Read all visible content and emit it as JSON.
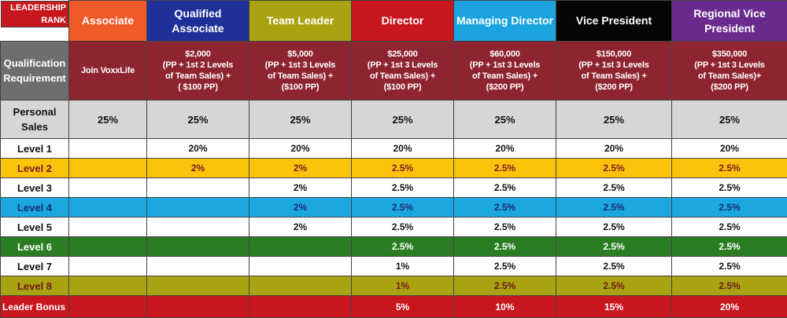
{
  "header": {
    "rank_label": "LEADERSHIP\nRANK",
    "ranks": [
      {
        "name": "Associate",
        "bg": "#f05a28",
        "fg": "#ffffff"
      },
      {
        "name": "Qualified\nAssociate",
        "bg": "#1f2f9a",
        "fg": "#ffffff"
      },
      {
        "name": "Team Leader",
        "bg": "#a9a312",
        "fg": "#ffffff"
      },
      {
        "name": "Director",
        "bg": "#c8161e",
        "fg": "#ffffff"
      },
      {
        "name": "Managing Director",
        "bg": "#1aa3df",
        "fg": "#ffffff"
      },
      {
        "name": "Vice President",
        "bg": "#050505",
        "fg": "#ffffff"
      },
      {
        "name": "Regional Vice President",
        "bg": "#6a2a8e",
        "fg": "#ffffff"
      }
    ]
  },
  "qualification": {
    "label": "Qualification\nRequirement",
    "values": [
      "Join VoxxLife",
      "$2,000\n(PP + 1st  2 Levels\nof Team Sales)  +\n( $100 PP)",
      "$5,000\n(PP + 1st  3 Levels\nof Team Sales) +\n($100 PP)",
      "$25,000\n(PP + 1st  3 Levels\nof Team Sales) +\n($100 PP)",
      "$60,000\n(PP + 1st  3 Levels\nof Team Sales) +\n($200 PP)",
      "$150,000\n(PP + 1st  3 Levels\nof Team Sales) +\n($200 PP)",
      "$350,000\n(PP + 1st  3 Levels\nof Team Sales)+\n($200 PP)"
    ]
  },
  "personal": {
    "label": "Personal\nSales",
    "values": [
      "25%",
      "25%",
      "25%",
      "25%",
      "25%",
      "25%",
      "25%"
    ]
  },
  "levels": [
    {
      "label": "Level 1",
      "bg": "#ffffff",
      "fg": "#111111",
      "values": [
        "",
        "20%",
        "20%",
        "20%",
        "20%",
        "20%",
        "20%"
      ]
    },
    {
      "label": "Level 2",
      "bg": "#fcc30d",
      "fg": "#7a1c1c",
      "values": [
        "",
        "2%",
        "2%",
        "2.5%",
        "2.5%",
        "2.5%",
        "2.5%"
      ]
    },
    {
      "label": "Level 3",
      "bg": "#ffffff",
      "fg": "#111111",
      "values": [
        "",
        "",
        "2%",
        "2.5%",
        "2.5%",
        "2.5%",
        "2.5%"
      ]
    },
    {
      "label": "Level 4",
      "bg": "#1ba8e0",
      "fg": "#1a2b73",
      "values": [
        "",
        "",
        "2%",
        "2.5%",
        "2.5%",
        "2.5%",
        "2.5%"
      ]
    },
    {
      "label": "Level 5",
      "bg": "#ffffff",
      "fg": "#111111",
      "values": [
        "",
        "",
        "2%",
        "2.5%",
        "2.5%",
        "2.5%",
        "2.5%"
      ]
    },
    {
      "label": "Level 6",
      "bg": "#2a7d22",
      "fg": "#ffffff",
      "values": [
        "",
        "",
        "",
        "2.5%",
        "2.5%",
        "2.5%",
        "2.5%"
      ]
    },
    {
      "label": "Level 7",
      "bg": "#ffffff",
      "fg": "#111111",
      "values": [
        "",
        "",
        "",
        "1%",
        "2.5%",
        "2.5%",
        "2.5%"
      ]
    },
    {
      "label": "Level 8",
      "bg": "#a9a312",
      "fg": "#6e1a1a",
      "values": [
        "",
        "",
        "",
        "1%",
        "2.5%",
        "2.5%",
        "2.5%"
      ]
    }
  ],
  "bonus": {
    "label": "Leader Bonus",
    "values": [
      "",
      "",
      "",
      "5%",
      "10%",
      "15%",
      "20%"
    ]
  },
  "colors": {
    "header_label_bg": "#c8161e",
    "qualification_bg": "#8e2430",
    "qualification_label_bg": "#6d6e70",
    "personal_bg": "#d6d6d6",
    "bonus_bg": "#c8161e",
    "border": "#444444"
  }
}
